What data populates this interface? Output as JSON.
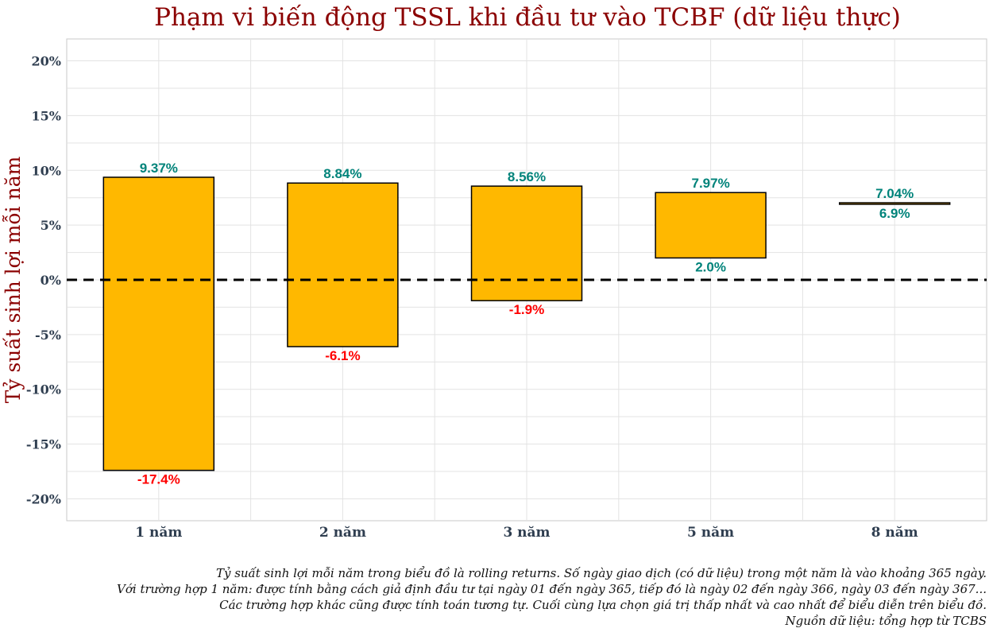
{
  "chart_data": {
    "type": "bar",
    "subtype": "floating-range",
    "title": "Phạm vi biến động TSSL khi đầu tư vào TCBF (dữ liệu thực)",
    "xlabel": "",
    "ylabel": "Tỷ suất sinh lợi mỗi năm",
    "categories": [
      "1 năm",
      "2 năm",
      "3 năm",
      "5 năm",
      "8 năm"
    ],
    "max_values": [
      9.37,
      8.84,
      8.56,
      7.97,
      7.04
    ],
    "min_values": [
      -17.4,
      -6.1,
      -1.9,
      2.0,
      6.9
    ],
    "max_labels": [
      "9.37%",
      "8.84%",
      "8.56%",
      "7.97%",
      "7.04%"
    ],
    "min_labels": [
      "-17.4%",
      "-6.1%",
      "-1.9%",
      "2.0%",
      "6.9%"
    ],
    "ylim": [
      -22,
      22
    ],
    "yticks": [
      20,
      15,
      10,
      5,
      0,
      -5,
      -10,
      -15,
      -20
    ],
    "ytick_labels": [
      "20%",
      "15%",
      "10%",
      "5%",
      "0%",
      "-5%",
      "-10%",
      "-15%",
      "-20%"
    ],
    "reference_line": {
      "value": 0,
      "style": "dashed"
    },
    "grid": true,
    "colors": {
      "bar_fill": "#FFB800",
      "bar_edge": "#000000",
      "positive_label": "#00837A",
      "negative_label": "#FF0000",
      "title": "#8B0000",
      "tick": "#2F3E50",
      "grid": "#E3E3E3"
    }
  },
  "caption": [
    "Tỷ suất sinh lợi mỗi năm trong biểu đồ là rolling returns. Số ngày giao dịch (có dữ liệu) trong một năm là vào khoảng 365 ngày.",
    "Với trường hợp 1 năm: được tính bằng cách giả định đầu tư tại ngày 01 đến ngày 365, tiếp đó là ngày 02 đến ngày 366, ngày 03 đến ngày 367...",
    "Các trường hợp khác cũng được tính toán tương tự. Cuối cùng lựa chọn giá trị thấp nhất và cao nhất để biểu diễn trên biểu đồ.",
    "Nguồn dữ liệu: tổng hợp từ TCBS"
  ]
}
